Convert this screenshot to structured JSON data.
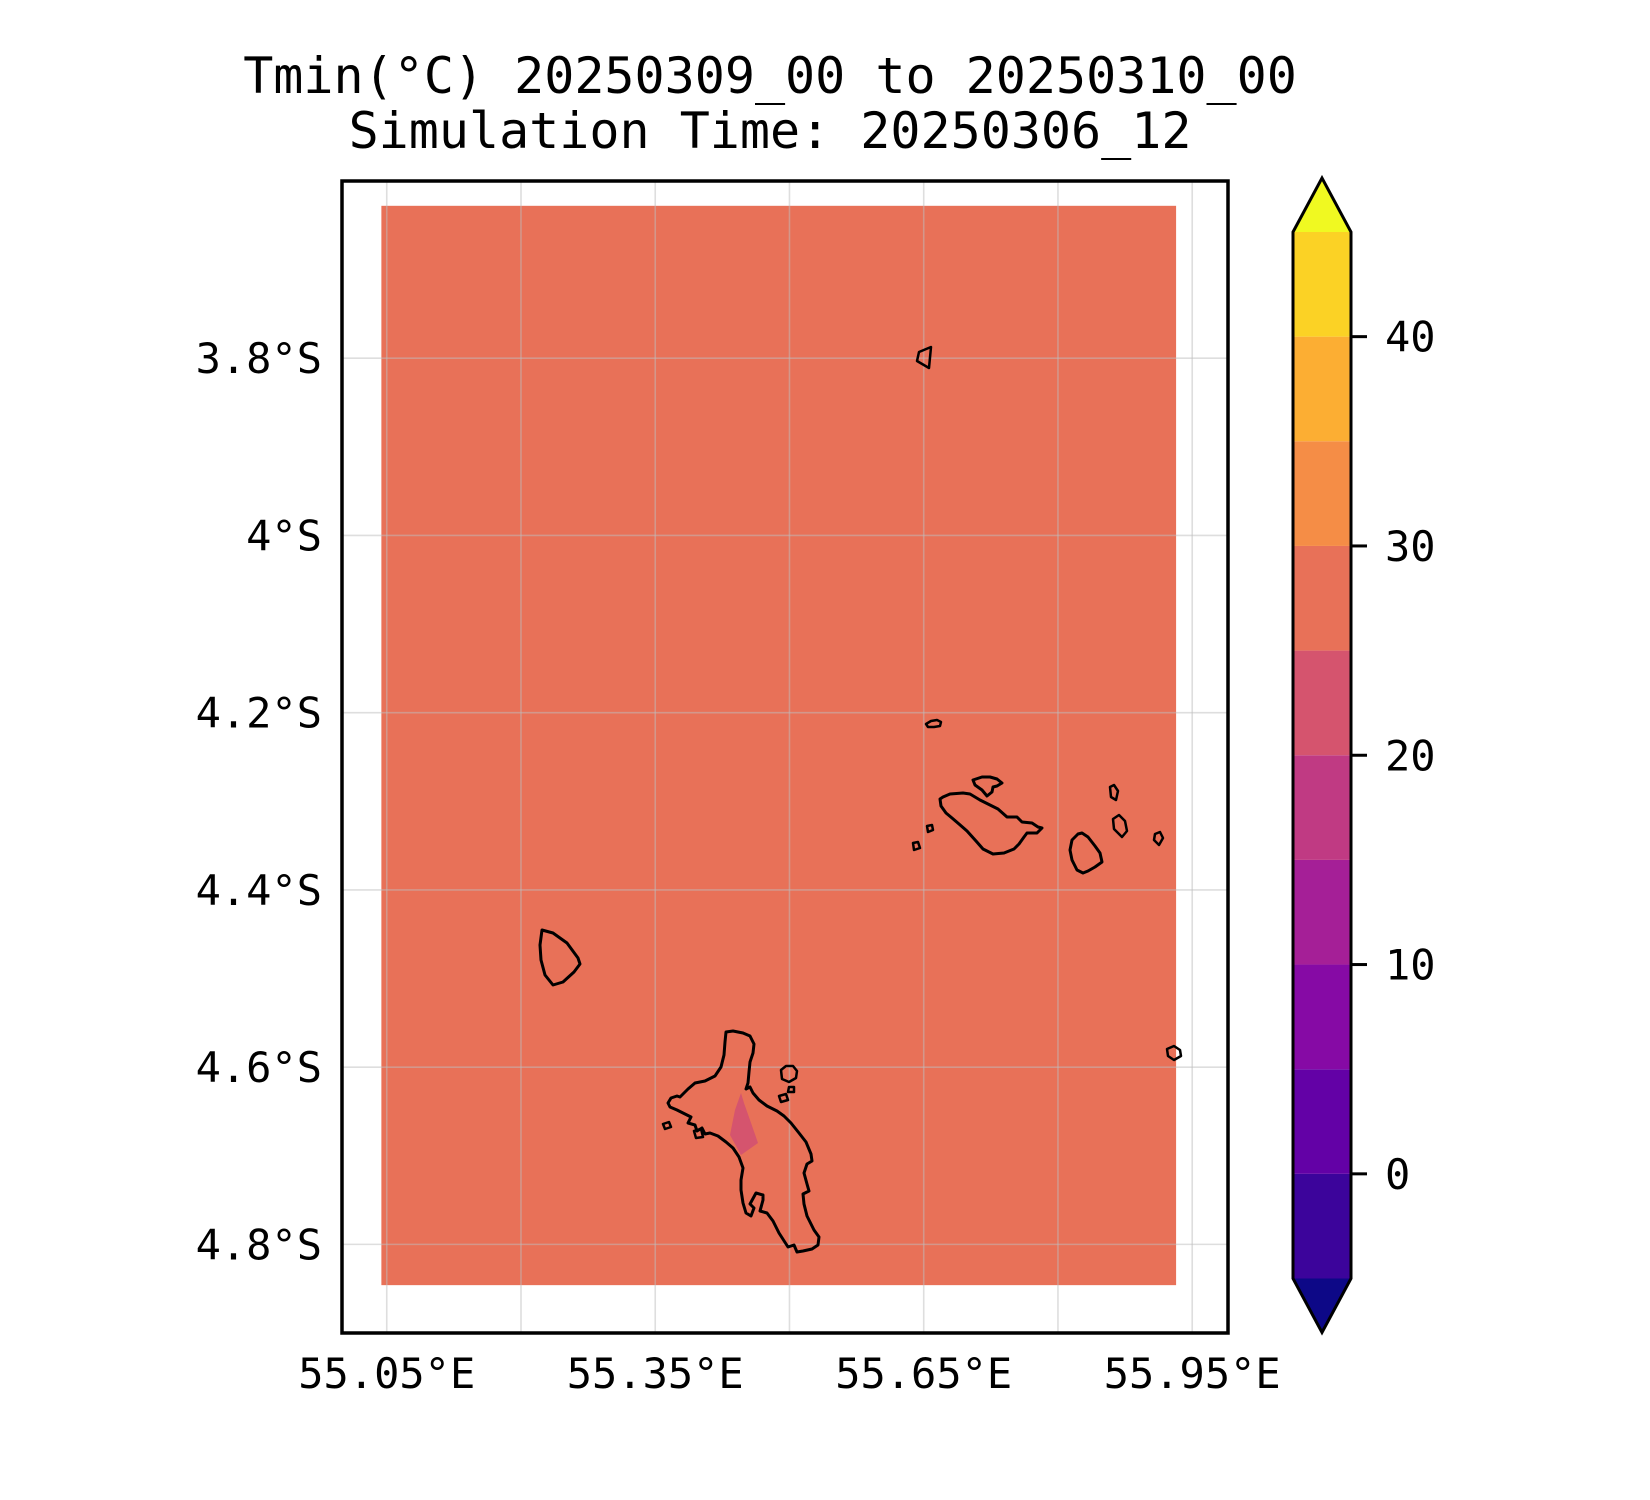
{
  "title": {
    "line1": "Tmin(°C) 20250309_00 to 20250310_00",
    "line2": "Simulation Time: 20250306_12"
  },
  "map": {
    "fill_color": "#e87158",
    "low_band_color": "#d5546e",
    "gridline_color": "#bebebe",
    "gridline_opacity": 0.5,
    "coastline_color": "#000000",
    "lon_range": [
      55.0,
      55.99
    ],
    "lat_range": [
      3.6,
      4.9
    ],
    "data_extent": {
      "lon": [
        55.044,
        55.932
      ],
      "lat": [
        3.628,
        4.846
      ]
    },
    "lon_gridlines": [
      {
        "lon": 55.05,
        "label": "55.05°E"
      },
      {
        "lon": 55.2,
        "label": ""
      },
      {
        "lon": 55.35,
        "label": "55.35°E"
      },
      {
        "lon": 55.5,
        "label": ""
      },
      {
        "lon": 55.65,
        "label": "55.65°E"
      },
      {
        "lon": 55.8,
        "label": ""
      },
      {
        "lon": 55.95,
        "label": "55.95°E"
      }
    ],
    "lat_gridlines": [
      {
        "lat": 3.8,
        "label": "3.8°S"
      },
      {
        "lat": 4.0,
        "label": "4°S"
      },
      {
        "lat": 4.2,
        "label": "4.2°S"
      },
      {
        "lat": 4.4,
        "label": "4.4°S"
      },
      {
        "lat": 4.6,
        "label": "4.6°S"
      },
      {
        "lat": 4.8,
        "label": "4.8°S"
      }
    ]
  },
  "colorbar": {
    "orientation": "vertical",
    "extend": "both",
    "levels": [
      -5,
      0,
      5,
      10,
      15,
      20,
      25,
      30,
      35,
      40,
      45
    ],
    "colors": [
      "#3c049b",
      "#6301a6",
      "#860aa5",
      "#a51f97",
      "#c03a83",
      "#d5546e",
      "#e87158",
      "#f58d46",
      "#fcae33",
      "#fbd225"
    ],
    "under_color": "#0d0887",
    "over_color": "#f0f921",
    "ticks": [
      {
        "value": 0,
        "label": "0"
      },
      {
        "value": 10,
        "label": "10"
      },
      {
        "value": 20,
        "label": "20"
      },
      {
        "value": 30,
        "label": "30"
      },
      {
        "value": 40,
        "label": "40"
      }
    ]
  },
  "chart_data": {
    "type": "heatmap",
    "title": "Tmin(°C) 20250309_00 to 20250310_00",
    "subtitle": "Simulation Time: 20250306_12",
    "variable": "Tmin",
    "units": "°C",
    "x_tick_labels": [
      "55.05°E",
      "55.35°E",
      "55.65°E",
      "55.95°E"
    ],
    "y_tick_labels": [
      "3.8°S",
      "4°S",
      "4.2°S",
      "4.4°S",
      "4.6°S",
      "4.8°S"
    ],
    "xlim": [
      "55.0°E",
      "56.0°E"
    ],
    "ylim": [
      "3.6°S",
      "4.9°S"
    ],
    "colorbar_tick_values": [
      0,
      10,
      20,
      30,
      40
    ],
    "contour_levels": [
      -5,
      0,
      5,
      10,
      15,
      20,
      25,
      30,
      35,
      40,
      45
    ],
    "field": [
      {
        "region": "entire plotted domain (ocean and all islands except patch below)",
        "value_band_c": "25–30"
      },
      {
        "region": "small patch over central Mahé island (~4.65°S, 55.45°E)",
        "value_band_c": "20–25"
      }
    ],
    "legend_position": "right",
    "grid": true
  }
}
